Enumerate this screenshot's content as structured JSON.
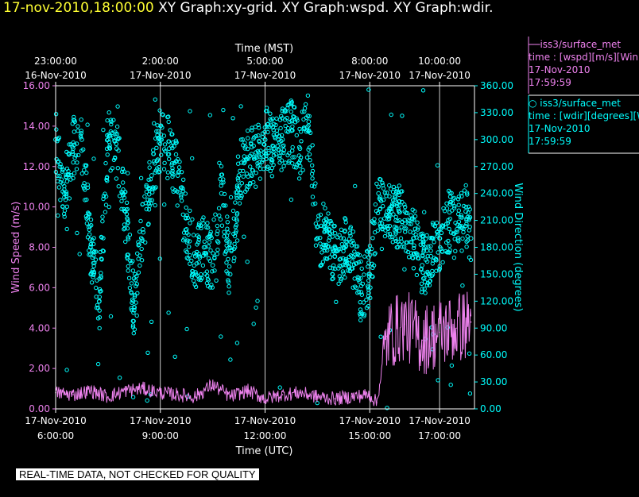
{
  "header": {
    "timestamp": "17-nov-2010,18:00:00",
    "graphs": "XY Graph:xy-grid.  XY Graph:wspd.  XY Graph:wdir."
  },
  "colors": {
    "wspd": "#ee82ee",
    "wdir": "#00ffff",
    "title_time": "#ffff33",
    "axis": "#ffffff",
    "background": "#000000"
  },
  "legend": {
    "wspd": {
      "name": "iss3/surface_met",
      "desc": "time : [wspd][m/s][Win",
      "date": "17-Nov-2010",
      "time": "17:59:59",
      "marker": "line"
    },
    "wdir": {
      "name": "iss3/surface_met",
      "desc": "time : [wdir][degrees][W",
      "date": "17-Nov-2010",
      "time": "17:59:59",
      "marker": "circle"
    }
  },
  "footer": {
    "quality_note": "REAL-TIME DATA, NOT CHECKED FOR QUALITY"
  },
  "chart_data": {
    "type": "scatter",
    "x_range_hours_utc": [
      6.0,
      18.0
    ],
    "x_note": "hours on 17-Nov-2010 UTC",
    "top_axis": {
      "label": "Time (MST)",
      "ticks": [
        {
          "t": 6.0,
          "time": "23:00:00",
          "date": "16-Nov-2010"
        },
        {
          "t": 9.0,
          "time": "2:00:00",
          "date": "17-Nov-2010"
        },
        {
          "t": 12.0,
          "time": "5:00:00",
          "date": "17-Nov-2010"
        },
        {
          "t": 15.0,
          "time": "8:00:00",
          "date": "17-Nov-2010"
        },
        {
          "t": 17.0,
          "time": "10:00:00",
          "date": "17-Nov-2010"
        }
      ]
    },
    "bottom_axis": {
      "label": "Time (UTC)",
      "ticks": [
        {
          "t": 6.0,
          "date": "17-Nov-2010",
          "time": "6:00:00"
        },
        {
          "t": 9.0,
          "date": "17-Nov-2010",
          "time": "9:00:00"
        },
        {
          "t": 12.0,
          "date": "17-Nov-2010",
          "time": "12:00:00"
        },
        {
          "t": 15.0,
          "date": "17-Nov-2010",
          "time": "15:00:00"
        },
        {
          "t": 17.0,
          "date": "17-Nov-2010",
          "time": "17:00:00"
        }
      ]
    },
    "left_axis": {
      "label": "Wind Speed (m/s)",
      "ylim": [
        0,
        16
      ],
      "ticks": [
        "0.00",
        "2.00",
        "4.00",
        "6.00",
        "8.00",
        "10.00",
        "12.00",
        "14.00",
        "16.00"
      ]
    },
    "right_axis": {
      "label": "Wind Direction (degrees)",
      "ylim": [
        0,
        360
      ],
      "ticks": [
        "0.00",
        "30.00",
        "60.00",
        "90.00",
        "120.00",
        "150.00",
        "180.00",
        "210.00",
        "240.00",
        "270.00",
        "300.00",
        "330.00",
        "360.00"
      ]
    },
    "grid": "vertical lines at top/bottom ticks",
    "series": [
      {
        "name": "iss3/surface_met wspd",
        "axis": "left",
        "style": "line",
        "x": [
          6.0,
          6.5,
          7.0,
          7.5,
          8.0,
          8.5,
          9.0,
          9.5,
          10.0,
          10.5,
          11.0,
          11.5,
          12.0,
          12.5,
          13.0,
          13.5,
          14.0,
          14.5,
          15.0,
          15.2,
          15.5,
          16.0,
          16.5,
          17.0,
          17.5,
          17.9
        ],
        "values": [
          0.8,
          0.7,
          0.9,
          0.6,
          0.9,
          1.0,
          0.8,
          0.7,
          0.6,
          1.2,
          0.6,
          0.9,
          0.5,
          0.7,
          0.8,
          0.6,
          0.5,
          0.6,
          0.7,
          0.3,
          3.6,
          4.2,
          3.4,
          3.8,
          4.0,
          4.3
        ]
      },
      {
        "name": "iss3/surface_met wdir",
        "axis": "right",
        "style": "circle",
        "x": [
          6.0,
          6.25,
          6.5,
          6.75,
          7.0,
          7.25,
          7.5,
          7.75,
          8.0,
          8.25,
          8.5,
          8.75,
          9.0,
          9.25,
          9.5,
          9.75,
          10.0,
          10.25,
          10.5,
          10.75,
          11.0,
          11.25,
          11.5,
          11.75,
          12.0,
          12.25,
          12.5,
          12.75,
          13.0,
          13.25,
          13.5,
          13.75,
          14.0,
          14.25,
          14.5,
          14.75,
          15.0,
          15.25,
          15.5,
          15.75,
          16.0,
          16.25,
          16.5,
          16.75,
          17.0,
          17.25,
          17.5,
          17.75,
          17.9
        ],
        "values": [
          300,
          240,
          290,
          300,
          180,
          120,
          300,
          290,
          220,
          110,
          200,
          260,
          300,
          290,
          260,
          200,
          170,
          180,
          160,
          240,
          150,
          260,
          280,
          280,
          300,
          290,
          300,
          310,
          290,
          320,
          190,
          200,
          170,
          180,
          170,
          130,
          150,
          240,
          220,
          210,
          210,
          190,
          160,
          170,
          190,
          210,
          200,
          220,
          190
        ]
      }
    ]
  }
}
